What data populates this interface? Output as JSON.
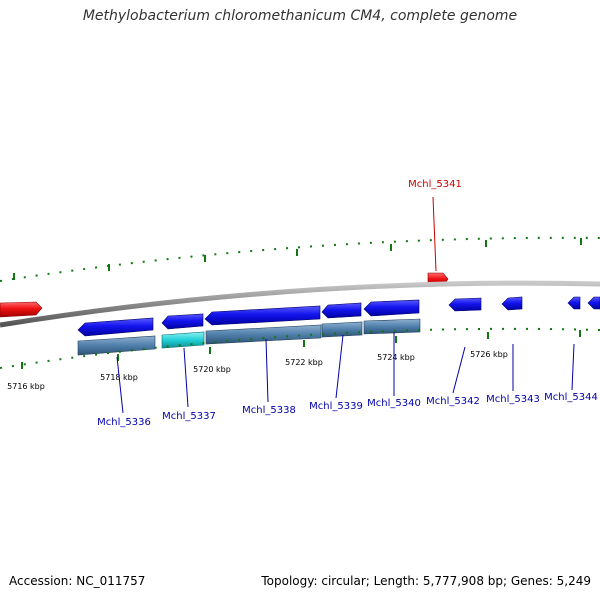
{
  "title": "Methylobacterium chloromethanicum CM4, complete genome",
  "footer": {
    "accession": "Accession: NC_011757",
    "summary": "Topology: circular; Length: 5,777,908 bp; Genes: 5,249"
  },
  "scale_labels": [
    "5716 kbp",
    "5718 kbp",
    "5720 kbp",
    "5722 kbp",
    "5724 kbp",
    "5726 kbp"
  ],
  "genes": [
    {
      "label": "Mchl_5336",
      "color": "#0000aa"
    },
    {
      "label": "Mchl_5337",
      "color": "#0000aa"
    },
    {
      "label": "Mchl_5338",
      "color": "#0000aa"
    },
    {
      "label": "Mchl_5339",
      "color": "#0000aa"
    },
    {
      "label": "Mchl_5340",
      "color": "#0000aa"
    },
    {
      "label": "Mchl_5341",
      "color": "#cc0000"
    },
    {
      "label": "Mchl_5342",
      "color": "#0000aa"
    },
    {
      "label": "Mchl_5343",
      "color": "#0000aa"
    },
    {
      "label": "Mchl_5344",
      "color": "#0000aa"
    }
  ],
  "colors": {
    "forward_feature": "#ee1111",
    "reverse_feature": "#1a1aee",
    "rna_track": "#4f7fab",
    "highlight_track": "#1fd0d6",
    "backbone": "#888888",
    "tick": "#117711"
  }
}
